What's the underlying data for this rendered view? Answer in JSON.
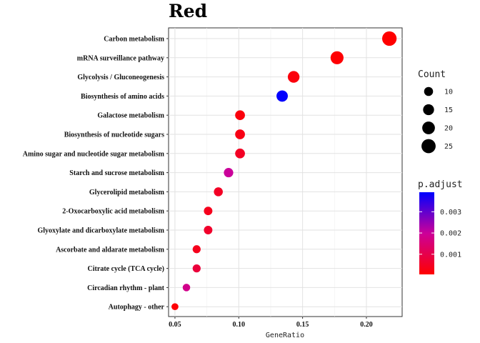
{
  "chart_data": {
    "type": "scatter",
    "title": "Red",
    "xlabel": "GeneRatio",
    "ylabel": "",
    "xlim": [
      0.045,
      0.228
    ],
    "xticks": [
      0.05,
      0.1,
      0.15,
      0.2
    ],
    "xtick_labels": [
      "0.05",
      "0.10",
      "0.15",
      "0.20"
    ],
    "grid": true,
    "legend_placement": "right",
    "color_low": "#ff0000",
    "color_high": "#0000ff",
    "categories": [
      "Carbon metabolism",
      "mRNA surveillance pathway",
      "Glycolysis / Gluconeogenesis",
      "Biosynthesis of amino acids",
      "Galactose metabolism",
      "Biosynthesis of nucleotide sugars",
      "Amino sugar and nucleotide sugar metabolism",
      "Starch and sucrose metabolism",
      "Glycerolipid metabolism",
      "2-Oxocarboxylic acid metabolism",
      "Glyoxylate and dicarboxylate metabolism",
      "Ascorbate and aldarate metabolism",
      "Citrate cycle (TCA cycle)",
      "Circadian rhythm - plant",
      "Autophagy - other"
    ],
    "points": [
      {
        "term": "Carbon metabolism",
        "gene_ratio": 0.218,
        "count": 26,
        "p_adjust": 5e-05
      },
      {
        "term": "mRNA surveillance pathway",
        "gene_ratio": 0.177,
        "count": 21,
        "p_adjust": 0.0001
      },
      {
        "term": "Glycolysis / Gluconeogenesis",
        "gene_ratio": 0.143,
        "count": 17,
        "p_adjust": 0.0002
      },
      {
        "term": "Biosynthesis of amino acids",
        "gene_ratio": 0.134,
        "count": 16,
        "p_adjust": 0.0039
      },
      {
        "term": "Galactose metabolism",
        "gene_ratio": 0.101,
        "count": 12,
        "p_adjust": 0.0002
      },
      {
        "term": "Biosynthesis of nucleotide sugars",
        "gene_ratio": 0.101,
        "count": 12,
        "p_adjust": 0.0003
      },
      {
        "term": "Amino sugar and nucleotide sugar metabolism",
        "gene_ratio": 0.101,
        "count": 12,
        "p_adjust": 0.0005
      },
      {
        "term": "Starch and sucrose metabolism",
        "gene_ratio": 0.092,
        "count": 11,
        "p_adjust": 0.002
      },
      {
        "term": "Glycerolipid metabolism",
        "gene_ratio": 0.084,
        "count": 10,
        "p_adjust": 0.0005
      },
      {
        "term": "2-Oxocarboxylic acid metabolism",
        "gene_ratio": 0.076,
        "count": 9,
        "p_adjust": 0.0004
      },
      {
        "term": "Glyoxylate and dicarboxylate metabolism",
        "gene_ratio": 0.076,
        "count": 9,
        "p_adjust": 0.0006
      },
      {
        "term": "Ascorbate and aldarate metabolism",
        "gene_ratio": 0.067,
        "count": 8,
        "p_adjust": 0.0004
      },
      {
        "term": "Citrate cycle (TCA cycle)",
        "gene_ratio": 0.067,
        "count": 8,
        "p_adjust": 0.0008
      },
      {
        "term": "Circadian rhythm - plant",
        "gene_ratio": 0.059,
        "count": 7,
        "p_adjust": 0.0018
      },
      {
        "term": "Autophagy - other",
        "gene_ratio": 0.05,
        "count": 6,
        "p_adjust": 0.0001
      }
    ],
    "size_legend": {
      "title": "Count",
      "values": [
        10,
        15,
        20,
        25
      ],
      "labels": [
        "10",
        "15",
        "20",
        "25"
      ]
    },
    "color_legend": {
      "title": "p.adjust",
      "range": [
        5e-05,
        0.00392
      ],
      "ticks": [
        0.001,
        0.002,
        0.003
      ],
      "tick_labels": [
        "0.001",
        "0.002",
        "0.003"
      ]
    }
  }
}
